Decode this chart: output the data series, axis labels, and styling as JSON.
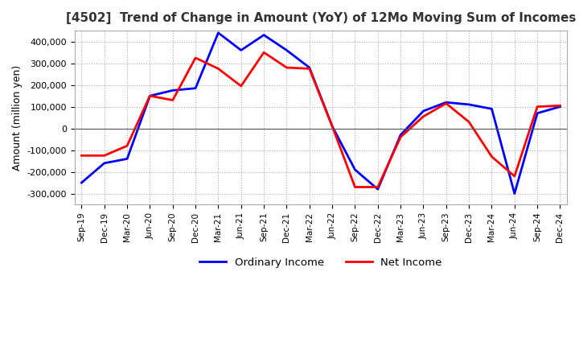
{
  "title": "[4502]  Trend of Change in Amount (YoY) of 12Mo Moving Sum of Incomes",
  "ylabel": "Amount (million yen)",
  "ylim": [
    -350000,
    450000
  ],
  "yticks": [
    -300000,
    -200000,
    -100000,
    0,
    100000,
    200000,
    300000,
    400000
  ],
  "legend_labels": [
    "Ordinary Income",
    "Net Income"
  ],
  "line_colors": [
    "#0000ff",
    "#ff0000"
  ],
  "background_color": "#ffffff",
  "grid_color": "#aaaaaa",
  "x_labels": [
    "Sep-19",
    "Dec-19",
    "Mar-20",
    "Jun-20",
    "Sep-20",
    "Dec-20",
    "Mar-21",
    "Jun-21",
    "Sep-21",
    "Dec-21",
    "Mar-22",
    "Jun-22",
    "Sep-22",
    "Dec-22",
    "Mar-23",
    "Jun-23",
    "Sep-23",
    "Dec-23",
    "Mar-24",
    "Jun-24",
    "Sep-24",
    "Dec-24"
  ],
  "ordinary_income": [
    -250000,
    -160000,
    -140000,
    150000,
    175000,
    185000,
    440000,
    360000,
    430000,
    360000,
    280000,
    10000,
    -190000,
    -280000,
    -30000,
    80000,
    120000,
    110000,
    90000,
    -300000,
    70000,
    100000
  ],
  "net_income": [
    -125000,
    -125000,
    -80000,
    150000,
    130000,
    325000,
    275000,
    195000,
    350000,
    280000,
    275000,
    10000,
    -270000,
    -270000,
    -40000,
    55000,
    115000,
    30000,
    -130000,
    -220000,
    100000,
    105000
  ]
}
